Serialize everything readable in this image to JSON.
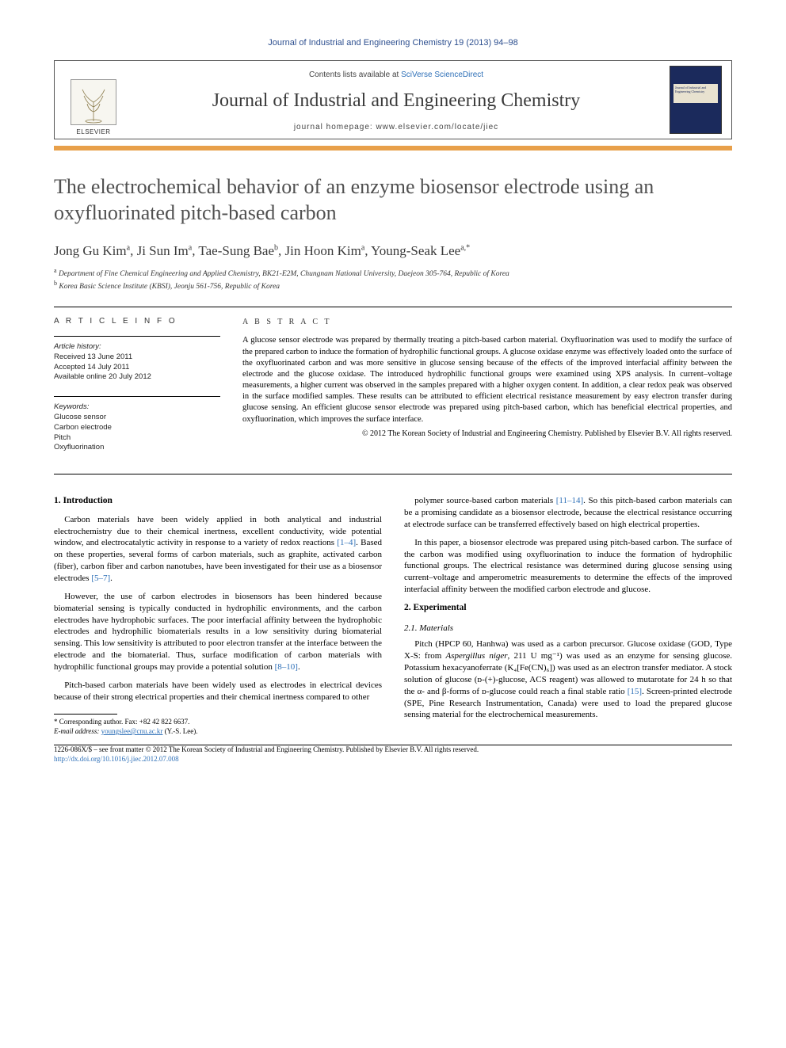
{
  "running_head": "Journal of Industrial and Engineering Chemistry 19 (2013) 94–98",
  "masthead": {
    "contents_text_pre": "Contents lists available at ",
    "contents_link": "SciVerse ScienceDirect",
    "journal_name": "Journal of Industrial and Engineering Chemistry",
    "homepage_text": "journal homepage: www.elsevier.com/locate/jiec",
    "publisher": "ELSEVIER",
    "cover_label": "Journal of Industrial and Engineering Chemistry"
  },
  "colors": {
    "accent_bar": "#e8a04a",
    "link": "#2d6fb7",
    "cover_bg": "#1b2a5c",
    "heading_gray": "#505050"
  },
  "title": "The electrochemical behavior of an enzyme biosensor electrode using an oxyfluorinated pitch-based carbon",
  "authors_html": "Jong Gu Kim<sup>a</sup>, Ji Sun Im<sup>a</sup>, Tae-Sung Bae<sup>b</sup>, Jin Hoon Kim<sup>a</sup>, Young-Seak Lee<sup>a,*</sup>",
  "affiliations": [
    "a Department of Fine Chemical Engineering and Applied Chemistry, BK21-E2M, Chungnam National University, Daejeon 305-764, Republic of Korea",
    "b Korea Basic Science Institute (KBSI), Jeonju 561-756, Republic of Korea"
  ],
  "article_info": {
    "head": "A R T I C L E   I N F O",
    "history_label": "Article history:",
    "history": [
      "Received 13 June 2011",
      "Accepted 14 July 2011",
      "Available online 20 July 2012"
    ],
    "keywords_label": "Keywords:",
    "keywords": [
      "Glucose sensor",
      "Carbon electrode",
      "Pitch",
      "Oxyfluorination"
    ]
  },
  "abstract": {
    "head": "A B S T R A C T",
    "body": "A glucose sensor electrode was prepared by thermally treating a pitch-based carbon material. Oxyfluorination was used to modify the surface of the prepared carbon to induce the formation of hydrophilic functional groups. A glucose oxidase enzyme was effectively loaded onto the surface of the oxyfluorinated carbon and was more sensitive in glucose sensing because of the effects of the improved interfacial affinity between the electrode and the glucose oxidase. The introduced hydrophilic functional groups were examined using XPS analysis. In current–voltage measurements, a higher current was observed in the samples prepared with a higher oxygen content. In addition, a clear redox peak was observed in the surface modified samples. These results can be attributed to efficient electrical resistance measurement by easy electron transfer during glucose sensing. An efficient glucose sensor electrode was prepared using pitch-based carbon, which has beneficial electrical properties, and oxyfluorination, which improves the surface interface.",
    "copyright": "© 2012 The Korean Society of Industrial and Engineering Chemistry. Published by Elsevier B.V. All rights reserved."
  },
  "sections": {
    "s1_head": "1. Introduction",
    "s1_p1": "Carbon materials have been widely applied in both analytical and industrial electrochemistry due to their chemical inertness, excellent conductivity, wide potential window, and electrocatalytic activity in response to a variety of redox reactions [1–4]. Based on these properties, several forms of carbon materials, such as graphite, activated carbon (fiber), carbon fiber and carbon nanotubes, have been investigated for their use as a biosensor electrodes [5–7].",
    "s1_p2": "However, the use of carbon electrodes in biosensors has been hindered because biomaterial sensing is typically conducted in hydrophilic environments, and the carbon electrodes have hydrophobic surfaces. The poor interfacial affinity between the hydrophobic electrodes and hydrophilic biomaterials results in a low sensitivity during biomaterial sensing. This low sensitivity is attributed to poor electron transfer at the interface between the electrode and the biomaterial. Thus, surface modification of carbon materials with hydrophilic functional groups may provide a potential solution [8–10].",
    "s1_p3": "Pitch-based carbon materials have been widely used as electrodes in electrical devices because of their strong electrical properties and their chemical inertness compared to other",
    "s1_p4": "polymer source-based carbon materials [11–14]. So this pitch-based carbon materials can be a promising candidate as a biosensor electrode, because the electrical resistance occurring at electrode surface can be transferred effectively based on high electrical properties.",
    "s1_p5": "In this paper, a biosensor electrode was prepared using pitch-based carbon. The surface of the carbon was modified using oxyfluorination to induce the formation of hydrophilic functional groups. The electrical resistance was determined during glucose sensing using current–voltage and amperometric measurements to determine the effects of the improved interfacial affinity between the modified carbon electrode and glucose.",
    "s2_head": "2. Experimental",
    "s21_head": "2.1. Materials",
    "s21_p1_a": "Pitch (HPCP 60, Hanhwa) was used as a carbon precursor. Glucose oxidase (GOD, Type X-S: from ",
    "s21_p1_em": "Aspergillus niger",
    "s21_p1_b": ", 211 U mg⁻¹) was used as an enzyme for sensing glucose. Potassium hexacyanoferrate (K₄[Fe(CN)₆]) was used as an electron transfer mediator. A stock solution of glucose (ᴅ-(+)-glucose, ACS reagent) was allowed to mutarotate for 24 h so that the α- and β-forms of ᴅ-glucose could reach a final stable ratio [15]. Screen-printed electrode (SPE, Pine Research Instrumentation, Canada) were used to load the prepared glucose sensing material for the electrochemical measurements."
  },
  "footnote": {
    "corr": "* Corresponding author. Fax: +82 42 822 6637.",
    "email_label": "E-mail address:",
    "email": "youngslee@cnu.ac.kr",
    "email_who": "(Y.-S. Lee)."
  },
  "bottom": {
    "line1": "1226-086X/$ – see front matter © 2012 The Korean Society of Industrial and Engineering Chemistry. Published by Elsevier B.V. All rights reserved.",
    "doi": "http://dx.doi.org/10.1016/j.jiec.2012.07.008"
  },
  "citations": {
    "c1": "[1–4]",
    "c2": "[5–7]",
    "c3": "[8–10]",
    "c4": "[11–14]",
    "c5": "[15]"
  }
}
